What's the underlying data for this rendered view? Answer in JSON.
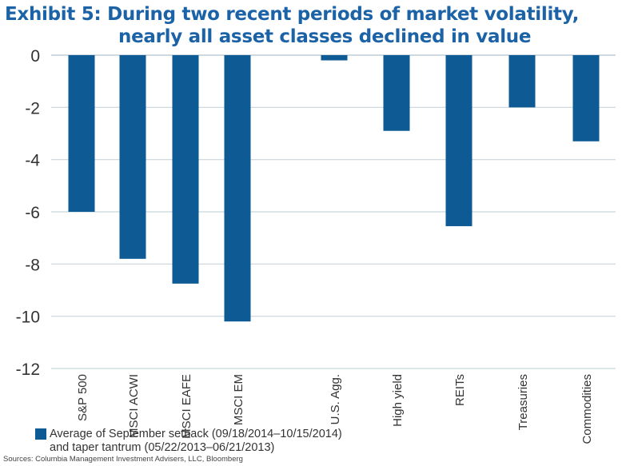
{
  "title_line1": "Exhibit 5: During two recent periods of market volatility,",
  "title_line2": "nearly all asset classes declined in value",
  "colors": {
    "bar": "#0d5a94",
    "title": "#1b62a6",
    "grid": "#c8d6dc"
  },
  "chart_data": {
    "type": "bar",
    "categories": [
      "S&P 500",
      "MSCI ACWI",
      "MSCI EAFE",
      "MSCI EM",
      "U.S. Agg.",
      "High yield",
      "REITs",
      "Treasuries",
      "Commodities"
    ],
    "series": [
      {
        "name": "Average of September setback (09/18/2014–10/15/2014) and taper tantrum (05/22/2013–06/21/2013)",
        "values": [
          -6.0,
          -7.8,
          -8.75,
          -10.2,
          -0.2,
          -2.9,
          -6.55,
          -2.0,
          -3.3
        ]
      }
    ],
    "ylim": [
      -12,
      0
    ],
    "yticks": [
      "0",
      "-2",
      "-4",
      "-6",
      "-8",
      "-10",
      "-12"
    ],
    "grid": true,
    "legend_position": "bottom-left"
  },
  "legend_line1": "Average of September setback (09/18/2014–10/15/2014)",
  "legend_line2": "and taper tantrum (05/22/2013–06/21/2013)",
  "source": "Sources: Columbia Management Investment Advisers, LLC, Bloomberg"
}
